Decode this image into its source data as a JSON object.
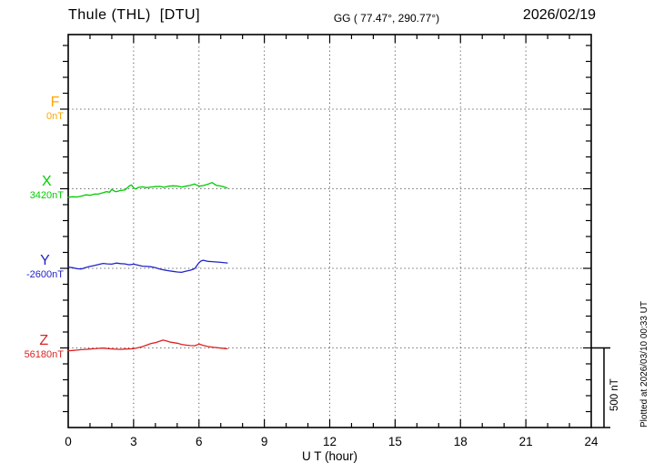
{
  "header": {
    "title": "Thule (THL)  [DTU]",
    "coords": "GG ( 77.47°, 290.77°)",
    "date": "2026/02/19"
  },
  "chart_data": {
    "type": "line",
    "title": "Thule (THL) [DTU] magnetogram",
    "xlabel": "U T (hour)",
    "ylabel": "",
    "xlim": [
      0,
      24
    ],
    "xticks": [
      0,
      3,
      6,
      9,
      12,
      15,
      18,
      21,
      24
    ],
    "minor_tick_every_hours": 1,
    "grid_hours": [
      3,
      6,
      9,
      12,
      15,
      18,
      21
    ],
    "grid": "dotted",
    "y_minor_tick_nT": 100,
    "baseline_spacing_nT": 500,
    "scale_bar": {
      "label": "500 nT",
      "nT": 500
    },
    "plotted_at": "Plotted at 2026/03/10 00:33 UT",
    "data_hours_span": [
      0,
      7.3
    ],
    "axis_color": "#000000",
    "series": [
      {
        "name": "F",
        "color": "#FFA500",
        "baseline_label": "0nT",
        "baseline_nT": 0,
        "points": []
      },
      {
        "name": "X",
        "color": "#00CC00",
        "baseline_label": "3420nT",
        "baseline_nT": 3420,
        "points": [
          [
            0,
            -54
          ],
          [
            0.2,
            -50
          ],
          [
            0.4,
            -52
          ],
          [
            0.6,
            -46
          ],
          [
            0.8,
            -38
          ],
          [
            1,
            -41
          ],
          [
            1.2,
            -34
          ],
          [
            1.4,
            -33
          ],
          [
            1.6,
            -25
          ],
          [
            1.75,
            -18
          ],
          [
            1.9,
            -22
          ],
          [
            2,
            -4
          ],
          [
            2.1,
            -14
          ],
          [
            2.2,
            -18
          ],
          [
            2.4,
            -11
          ],
          [
            2.6,
            -8
          ],
          [
            2.8,
            17
          ],
          [
            2.9,
            24
          ],
          [
            3,
            5
          ],
          [
            3.1,
            -2
          ],
          [
            3.2,
            8
          ],
          [
            3.4,
            12
          ],
          [
            3.6,
            7
          ],
          [
            3.8,
            11
          ],
          [
            4,
            13
          ],
          [
            4.2,
            15
          ],
          [
            4.4,
            9
          ],
          [
            4.6,
            16
          ],
          [
            4.8,
            18
          ],
          [
            5,
            17
          ],
          [
            5.2,
            11
          ],
          [
            5.4,
            16
          ],
          [
            5.6,
            22
          ],
          [
            5.8,
            30
          ],
          [
            6,
            16
          ],
          [
            6.2,
            20
          ],
          [
            6.4,
            28
          ],
          [
            6.6,
            39
          ],
          [
            6.8,
            21
          ],
          [
            7,
            17
          ],
          [
            7.1,
            14
          ],
          [
            7.2,
            9
          ],
          [
            7.3,
            4
          ]
        ]
      },
      {
        "name": "Y",
        "color": "#2222CC",
        "baseline_label": "-2600nT",
        "baseline_nT": -2600,
        "points": [
          [
            0,
            8
          ],
          [
            0.2,
            4
          ],
          [
            0.4,
            -2
          ],
          [
            0.6,
            -4
          ],
          [
            0.8,
            5
          ],
          [
            1,
            12
          ],
          [
            1.2,
            18
          ],
          [
            1.4,
            24
          ],
          [
            1.6,
            31
          ],
          [
            1.8,
            28
          ],
          [
            2,
            26
          ],
          [
            2.2,
            33
          ],
          [
            2.4,
            30
          ],
          [
            2.6,
            28
          ],
          [
            2.8,
            22
          ],
          [
            3,
            26
          ],
          [
            3.2,
            20
          ],
          [
            3.4,
            14
          ],
          [
            3.6,
            12
          ],
          [
            3.8,
            10
          ],
          [
            4,
            4
          ],
          [
            4.2,
            -4
          ],
          [
            4.4,
            -10
          ],
          [
            4.6,
            -15
          ],
          [
            4.8,
            -19
          ],
          [
            5,
            -23
          ],
          [
            5.2,
            -25
          ],
          [
            5.4,
            -18
          ],
          [
            5.6,
            -12
          ],
          [
            5.8,
            -2
          ],
          [
            6,
            36
          ],
          [
            6.1,
            46
          ],
          [
            6.2,
            51
          ],
          [
            6.4,
            44
          ],
          [
            6.6,
            42
          ],
          [
            6.8,
            40
          ],
          [
            7,
            38
          ],
          [
            7.2,
            35
          ],
          [
            7.3,
            34
          ]
        ]
      },
      {
        "name": "Z",
        "color": "#DD2222",
        "baseline_label": "56180nT",
        "baseline_nT": 56180,
        "points": [
          [
            0,
            -18
          ],
          [
            0.2,
            -16
          ],
          [
            0.4,
            -14
          ],
          [
            0.6,
            -11
          ],
          [
            0.8,
            -9
          ],
          [
            1,
            -7
          ],
          [
            1.2,
            -5
          ],
          [
            1.4,
            -3
          ],
          [
            1.6,
            -1
          ],
          [
            1.8,
            -4
          ],
          [
            2,
            -6
          ],
          [
            2.2,
            -8
          ],
          [
            2.4,
            -9
          ],
          [
            2.6,
            -7
          ],
          [
            2.8,
            -6
          ],
          [
            3,
            -5
          ],
          [
            3.2,
            1
          ],
          [
            3.4,
            8
          ],
          [
            3.6,
            18
          ],
          [
            3.8,
            28
          ],
          [
            4,
            33
          ],
          [
            4.2,
            42
          ],
          [
            4.35,
            49
          ],
          [
            4.5,
            44
          ],
          [
            4.7,
            36
          ],
          [
            5,
            30
          ],
          [
            5.2,
            22
          ],
          [
            5.4,
            18
          ],
          [
            5.6,
            15
          ],
          [
            5.8,
            14
          ],
          [
            6,
            24
          ],
          [
            6.2,
            16
          ],
          [
            6.4,
            9
          ],
          [
            6.6,
            5
          ],
          [
            6.8,
            2
          ],
          [
            7,
            -1
          ],
          [
            7.2,
            -4
          ],
          [
            7.3,
            -5
          ]
        ]
      }
    ]
  }
}
